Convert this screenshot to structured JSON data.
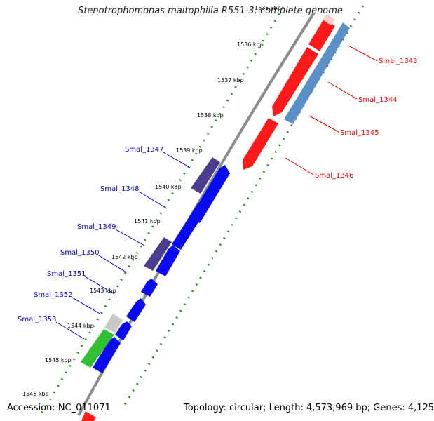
{
  "title": "Stenotrophomonas maltophilia R551-3, complete genome",
  "footer": {
    "accession": "Accession: NC_011071",
    "summary": "Topology: circular; Length: 4,573,969 bp; Genes: 4,125"
  },
  "colors": {
    "reverse_cds": "#ff1a1a",
    "forward_cds": "#0a0aee",
    "other_reverse": "#5a8fc8",
    "other_forward": "#4a3f8e",
    "rna": "#30c030",
    "pseudo": "#c8c8c8",
    "backbone": "#8c8c8c",
    "tick": "#2a8a2a",
    "label_right": "#e00000",
    "label_left": "#0000c8"
  },
  "scale_ticks": [
    "1535 kbp",
    "1536 kbp",
    "1537 kbp",
    "1538 kbp",
    "1539 kbp",
    "1540 kbp",
    "1541 kbp",
    "1542 kbp",
    "1543 kbp",
    "1544 kbp",
    "1545 kbp",
    "1546 kbp"
  ],
  "gene_labels_right": [
    "Smal_1343",
    "Smal_1344",
    "Smal_1345",
    "Smal_1346"
  ],
  "gene_labels_left": [
    "Smal_1347",
    "Smal_1348",
    "Smal_1349",
    "Smal_1350",
    "Smal_1351",
    "Smal_1352",
    "Smal_1353"
  ]
}
